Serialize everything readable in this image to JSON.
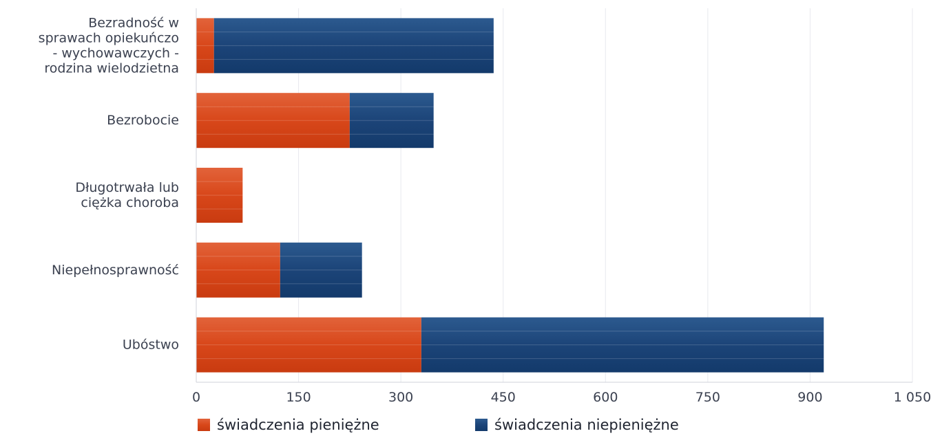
{
  "chart_data": {
    "type": "bar",
    "orientation": "horizontal",
    "stacked": true,
    "categories": [
      [
        "Bezradność w",
        "sprawach opiekuńczo",
        "- wychowawczych -",
        "rodzina wielodzietna"
      ],
      [
        "Bezrobocie"
      ],
      [
        "Długotrwała lub",
        "ciężka choroba"
      ],
      [
        "Niepełnosprawność"
      ],
      [
        "Ubóstwo"
      ]
    ],
    "series": [
      {
        "name": "świadczenia pieniężne",
        "color": "#d8471a",
        "values": [
          26,
          225,
          68,
          123,
          330
        ]
      },
      {
        "name": "świadczenia niepieniężne",
        "color": "#1c4478",
        "values": [
          410,
          123,
          0,
          120,
          590
        ]
      }
    ],
    "xlim": [
      0,
      1050
    ],
    "xticks": [
      0,
      150,
      300,
      450,
      600,
      750,
      900,
      1050
    ],
    "xtick_labels": [
      "0",
      "150",
      "300",
      "450",
      "600",
      "750",
      "900",
      "1 050"
    ],
    "grid": true,
    "legend_position": "bottom"
  }
}
